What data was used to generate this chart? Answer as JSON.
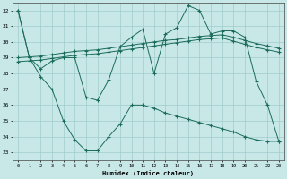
{
  "background_color": "#c8e8e8",
  "grid_color": "#a0cccc",
  "line_color": "#1a6b5a",
  "xlabel": "Humidex (Indice chaleur)",
  "xlim": [
    -0.5,
    23.5
  ],
  "ylim": [
    22.5,
    32.5
  ],
  "yticks": [
    23,
    24,
    25,
    26,
    27,
    28,
    29,
    30,
    31,
    32
  ],
  "xticks": [
    0,
    1,
    2,
    3,
    4,
    5,
    6,
    7,
    8,
    9,
    10,
    11,
    12,
    13,
    14,
    15,
    16,
    17,
    18,
    19,
    20,
    21,
    22,
    23
  ],
  "s1_x": [
    0,
    1,
    2,
    3,
    4,
    5,
    6,
    7,
    8,
    9,
    10,
    11,
    12,
    13,
    14,
    15,
    16,
    17,
    18,
    19,
    20,
    21,
    22,
    23
  ],
  "s1_y": [
    32.0,
    29.0,
    28.3,
    28.8,
    29.0,
    29.0,
    26.5,
    26.3,
    27.6,
    29.7,
    30.3,
    30.8,
    28.0,
    30.5,
    30.9,
    32.3,
    32.0,
    30.5,
    30.7,
    30.7,
    30.3,
    27.5,
    26.0,
    23.7
  ],
  "s2_x": [
    0,
    1,
    2,
    3,
    4,
    5,
    6,
    7,
    8,
    9,
    10,
    11,
    12,
    13,
    14,
    15,
    16,
    17,
    18,
    19,
    20,
    21,
    22,
    23
  ],
  "s2_y": [
    32.0,
    29.0,
    27.8,
    27.0,
    25.0,
    23.8,
    23.1,
    23.1,
    24.0,
    24.8,
    26.0,
    26.0,
    25.8,
    25.5,
    25.3,
    25.1,
    24.9,
    24.7,
    24.5,
    24.3,
    24.0,
    23.8,
    23.7,
    23.7
  ],
  "s3_x": [
    0,
    1,
    2,
    3,
    4,
    5,
    6,
    7,
    8,
    9,
    10,
    11,
    12,
    13,
    14,
    15,
    16,
    17,
    18,
    19,
    20,
    21,
    22,
    23
  ],
  "s3_y": [
    29.0,
    29.05,
    29.1,
    29.2,
    29.3,
    29.4,
    29.45,
    29.5,
    29.6,
    29.7,
    29.8,
    29.9,
    30.0,
    30.1,
    30.15,
    30.25,
    30.35,
    30.4,
    30.45,
    30.3,
    30.1,
    29.9,
    29.75,
    29.6
  ],
  "s4_x": [
    0,
    1,
    2,
    3,
    4,
    5,
    6,
    7,
    8,
    9,
    10,
    11,
    12,
    13,
    14,
    15,
    16,
    17,
    18,
    19,
    20,
    21,
    22,
    23
  ],
  "s4_y": [
    28.75,
    28.8,
    28.85,
    28.95,
    29.05,
    29.15,
    29.2,
    29.25,
    29.35,
    29.45,
    29.55,
    29.65,
    29.75,
    29.85,
    29.95,
    30.05,
    30.15,
    30.2,
    30.25,
    30.05,
    29.85,
    29.65,
    29.5,
    29.35
  ]
}
